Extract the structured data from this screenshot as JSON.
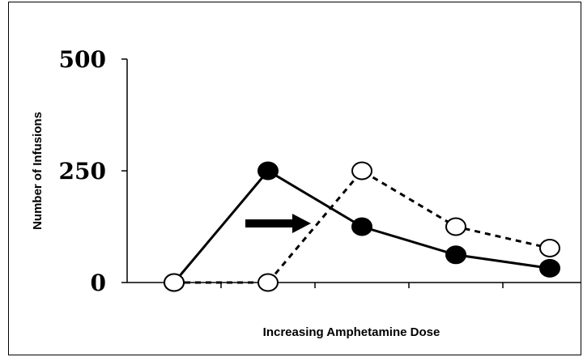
{
  "chart_data": {
    "type": "line",
    "title": "",
    "xlabel": "Increasing Amphetamine Dose",
    "ylabel": "Number of Infusions",
    "y_ticks": [
      "0",
      "250",
      "500"
    ],
    "ylim": [
      0,
      500
    ],
    "x_positions": 5,
    "series": [
      {
        "style": "solid",
        "marker": "filled-circle",
        "x": [
          1,
          2,
          3,
          4,
          5
        ],
        "values": [
          0,
          250,
          125,
          62,
          32
        ]
      },
      {
        "style": "dashed",
        "marker": "open-circle",
        "x": [
          1,
          2,
          3,
          4,
          5
        ],
        "values": [
          0,
          0,
          250,
          125,
          77
        ]
      }
    ],
    "annotation": {
      "type": "arrow",
      "direction": "right",
      "color": "#000000"
    },
    "grid": false,
    "legend": "none"
  }
}
